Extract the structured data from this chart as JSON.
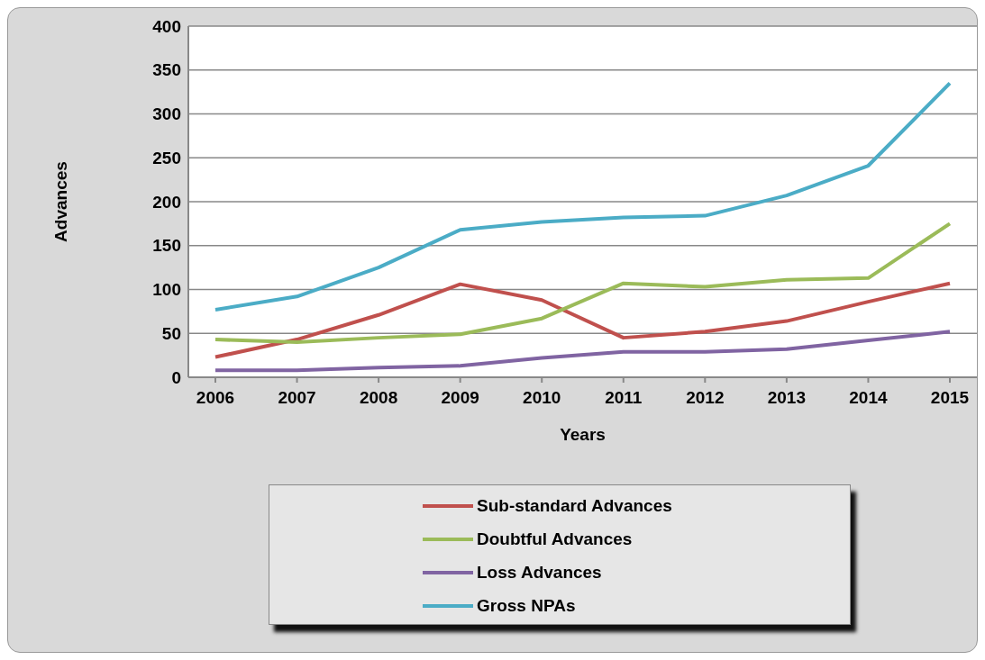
{
  "chart_data": {
    "type": "line",
    "xlabel": "Years",
    "ylabel": "Advances",
    "categories": [
      "2006",
      "2007",
      "2008",
      "2009",
      "2010",
      "2011",
      "2012",
      "2013",
      "2014",
      "2015"
    ],
    "series": [
      {
        "name": "Sub-standard Advances",
        "color": "#c0504d",
        "values": [
          23,
          43,
          71,
          106,
          88,
          45,
          52,
          64,
          86,
          107
        ]
      },
      {
        "name": "Doubtful Advances",
        "color": "#9bbb59",
        "values": [
          43,
          40,
          45,
          49,
          67,
          107,
          103,
          111,
          113,
          175
        ]
      },
      {
        "name": "Loss Advances",
        "color": "#8064a2",
        "values": [
          8,
          8,
          11,
          13,
          22,
          29,
          29,
          32,
          42,
          52
        ]
      },
      {
        "name": "Gross NPAs",
        "color": "#4bacc6",
        "values": [
          77,
          92,
          125,
          168,
          177,
          182,
          184,
          207,
          241,
          335
        ]
      }
    ],
    "ylim": [
      0,
      400
    ],
    "yticks": [
      0,
      50,
      100,
      150,
      200,
      250,
      300,
      350,
      400
    ],
    "grid": "y",
    "legend": "bottom",
    "marker": "none",
    "line_style": "solid"
  }
}
